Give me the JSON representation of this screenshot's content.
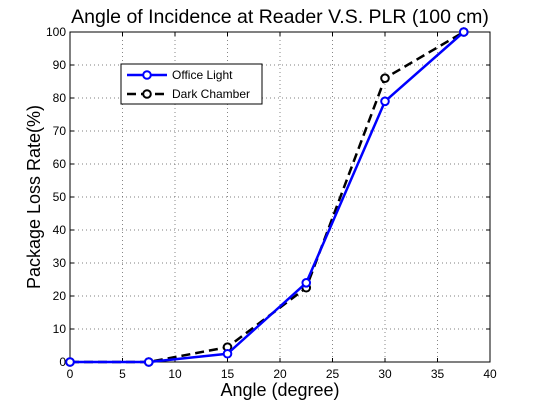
{
  "chart_data": {
    "type": "line",
    "title": "Angle of Incidence at Reader V.S. PLR (100 cm)",
    "xlabel": "Angle (degree)",
    "ylabel": "Package Loss Rate(%)",
    "xlim": [
      0,
      40
    ],
    "ylim": [
      0,
      100
    ],
    "xticks": [
      0,
      5,
      10,
      15,
      20,
      25,
      30,
      35,
      40
    ],
    "yticks": [
      0,
      10,
      20,
      30,
      40,
      50,
      60,
      70,
      80,
      90,
      100
    ],
    "grid": true,
    "legend_position": "upper-left",
    "series": [
      {
        "name": "Office Light",
        "color": "#0000ff",
        "line_style": "solid",
        "marker": "circle",
        "x": [
          0,
          7.5,
          15,
          22.5,
          30,
          37.5
        ],
        "y": [
          0,
          0,
          2.5,
          24,
          79,
          100
        ]
      },
      {
        "name": "Dark Chamber",
        "color": "#000000",
        "line_style": "dashed",
        "marker": "circle",
        "x": [
          0,
          7.5,
          15,
          22.5,
          30,
          37.5
        ],
        "y": [
          0,
          0,
          4.5,
          22.5,
          86,
          100
        ]
      }
    ]
  }
}
